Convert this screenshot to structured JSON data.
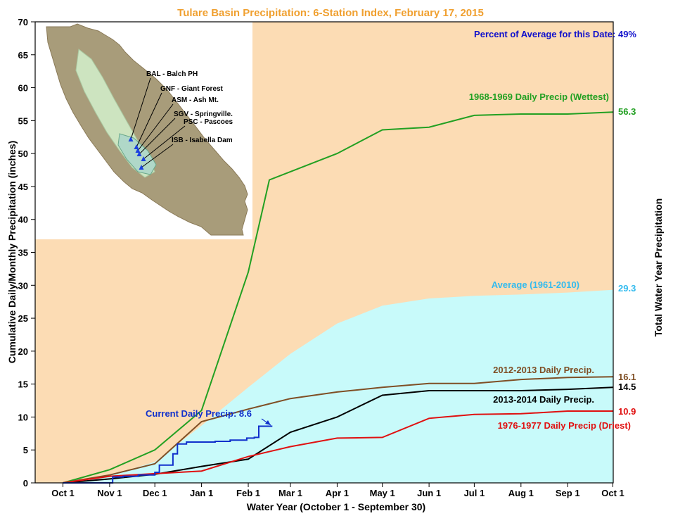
{
  "chart_data": {
    "type": "line",
    "title": "Tulare Basin Precipitation: 6-Station Index, February 17, 2015",
    "subtitle": "Percent of Average for this Date: 49%",
    "xlabel": "Water Year (October 1 - September 30)",
    "ylabel": "Cumulative Daily/Monthly Precipitation (inches)",
    "ylabel_right": "Total Water Year Precipitation",
    "ylim": [
      0,
      70
    ],
    "yticks": [
      0,
      5,
      10,
      15,
      20,
      25,
      30,
      35,
      40,
      45,
      50,
      55,
      60,
      65,
      70
    ],
    "xticks": [
      "Oct 1",
      "Nov 1",
      "Dec 1",
      "Jan 1",
      "Feb 1",
      "Mar 1",
      "Apr 1",
      "May 1",
      "Jun 1",
      "Jul 1",
      "Aug 1",
      "Sep 1",
      "Oct 1"
    ],
    "grid": false,
    "colors": {
      "background": "#fcdcb4",
      "plot_border": "#000000",
      "title": "#f0a030"
    },
    "series": [
      {
        "name": "Average (1961-2010)",
        "kind": "area",
        "color": "#c8fafa",
        "label_color": "#33bbee",
        "total_label": "29.3",
        "points": [
          [
            "Oct 1",
            0
          ],
          [
            "Nov 1",
            1.1
          ],
          [
            "Dec 1",
            3.2
          ],
          [
            "Jan 1",
            8.7
          ],
          [
            "Feb 1",
            14.5
          ],
          [
            "Mar 1",
            19.6
          ],
          [
            "Apr 1",
            24.2
          ],
          [
            "May 1",
            26.9
          ],
          [
            "Jun 1",
            28.0
          ],
          [
            "Jul 1",
            28.4
          ],
          [
            "Aug 1",
            28.6
          ],
          [
            "Sep 1",
            28.9
          ],
          [
            "Oct 1",
            29.3
          ]
        ]
      },
      {
        "name": "1968-1969 Daily Precip (Wettest)",
        "kind": "line",
        "color": "#22a022",
        "total_label": "56.3",
        "points": [
          [
            "Oct 1",
            0
          ],
          [
            "Nov 1",
            2.0
          ],
          [
            "Dec 1",
            5.0
          ],
          [
            "Jan 1",
            11.0
          ],
          [
            "Feb 1",
            32.0
          ],
          [
            "Feb 15",
            46.0
          ],
          [
            "Apr 1",
            50.0
          ],
          [
            "May 1",
            53.6
          ],
          [
            "Jun 1",
            54.0
          ],
          [
            "Jul 1",
            55.8
          ],
          [
            "Aug 1",
            56.0
          ],
          [
            "Sep 1",
            56.0
          ],
          [
            "Oct 1",
            56.3
          ]
        ]
      },
      {
        "name": "2012-2013 Daily Precip.",
        "kind": "line",
        "color": "#7f4f25",
        "total_label": "16.1",
        "points": [
          [
            "Oct 1",
            0
          ],
          [
            "Nov 1",
            1.2
          ],
          [
            "Dec 1",
            2.9
          ],
          [
            "Jan 1",
            9.3
          ],
          [
            "Feb 1",
            11.2
          ],
          [
            "Mar 1",
            12.8
          ],
          [
            "Apr 1",
            13.8
          ],
          [
            "May 1",
            14.5
          ],
          [
            "Jun 1",
            15.1
          ],
          [
            "Jul 1",
            15.1
          ],
          [
            "Aug 1",
            15.7
          ],
          [
            "Sep 1",
            16.0
          ],
          [
            "Oct 1",
            16.1
          ]
        ]
      },
      {
        "name": "2013-2014 Daily Precip.",
        "kind": "line",
        "color": "#000000",
        "total_label": "14.5",
        "points": [
          [
            "Oct 1",
            0
          ],
          [
            "Nov 1",
            0.6
          ],
          [
            "Dec 1",
            1.3
          ],
          [
            "Jan 1",
            2.5
          ],
          [
            "Feb 1",
            3.6
          ],
          [
            "Mar 1",
            7.7
          ],
          [
            "Apr 1",
            10.0
          ],
          [
            "May 1",
            13.3
          ],
          [
            "Jun 1",
            14.0
          ],
          [
            "Jul 1",
            14.0
          ],
          [
            "Aug 1",
            14.0
          ],
          [
            "Sep 1",
            14.2
          ],
          [
            "Oct 1",
            14.5
          ]
        ]
      },
      {
        "name": "1976-1977 Daily Precip (Driest)",
        "kind": "line",
        "color": "#e01010",
        "total_label": "10.9",
        "points": [
          [
            "Oct 1",
            0
          ],
          [
            "Nov 1",
            1.0
          ],
          [
            "Dec 1",
            1.4
          ],
          [
            "Jan 1",
            1.8
          ],
          [
            "Feb 1",
            4.0
          ],
          [
            "Mar 1",
            5.5
          ],
          [
            "Apr 1",
            6.8
          ],
          [
            "May 1",
            6.9
          ],
          [
            "Jun 1",
            9.8
          ],
          [
            "Jul 1",
            10.4
          ],
          [
            "Aug 1",
            10.5
          ],
          [
            "Sep 1",
            10.9
          ],
          [
            "Oct 1",
            10.9
          ]
        ]
      },
      {
        "name": "Current Daily Precip: 8.6",
        "kind": "step",
        "color": "#1030cc",
        "label_color": "#1030cc",
        "points": [
          [
            "Oct 1",
            0
          ],
          [
            "Nov 1",
            0
          ],
          [
            "Nov 3",
            0.9
          ],
          [
            "Nov 10",
            1.0
          ],
          [
            "Nov 20",
            1.2
          ],
          [
            "Dec 1",
            1.6
          ],
          [
            "Dec 3",
            1.6
          ],
          [
            "Dec 4",
            2.7
          ],
          [
            "Dec 12",
            2.7
          ],
          [
            "Dec 13",
            4.4
          ],
          [
            "Dec 16",
            5.9
          ],
          [
            "Dec 22",
            6.2
          ],
          [
            "Jan 10",
            6.3
          ],
          [
            "Jan 20",
            6.5
          ],
          [
            "Jan 31",
            6.8
          ],
          [
            "Feb 5",
            6.9
          ],
          [
            "Feb 8",
            8.6
          ],
          [
            "Feb 17",
            8.6
          ]
        ]
      }
    ]
  },
  "map_inset": {
    "stations": [
      "BAL - Balch PH",
      "GNF - Giant Forest",
      "ASM - Ash Mt.",
      "SGV - Springville.",
      "PSC - Pascoes",
      "ISB - Isabella Dam"
    ]
  }
}
